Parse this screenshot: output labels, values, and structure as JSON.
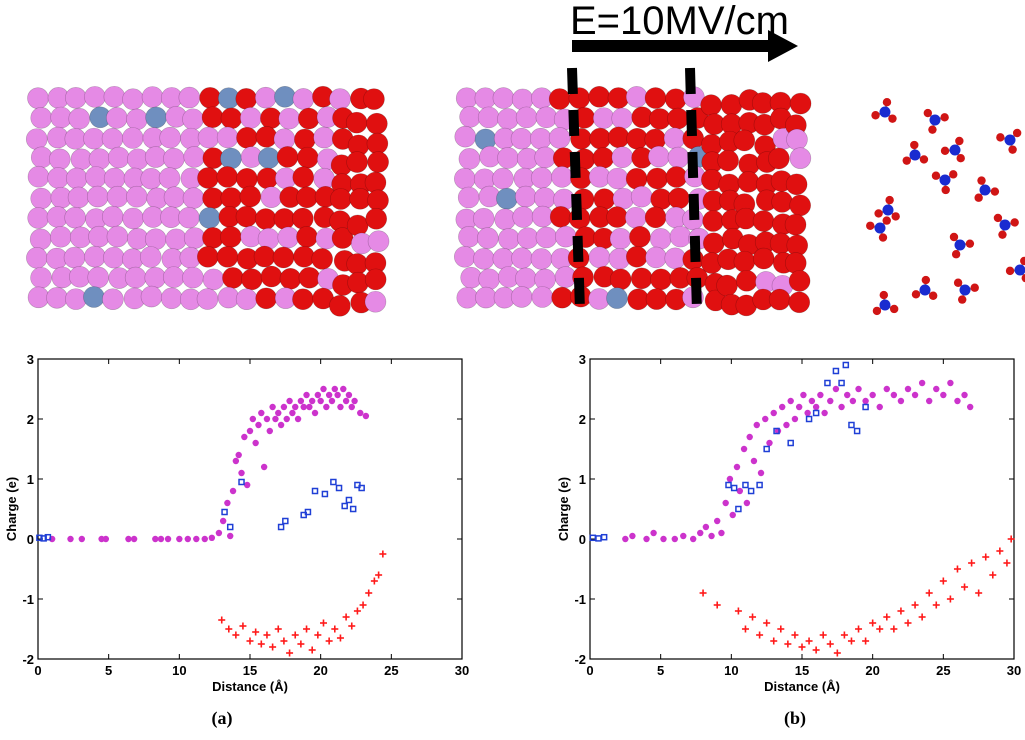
{
  "top": {
    "field_label": "E=10MV/cm"
  },
  "colors": {
    "magenta": "#cc33cc",
    "blue": "#1f3fd6",
    "red": "#ff1a1a",
    "atom_pink": "#e58ae5",
    "atom_red": "#e01010",
    "atom_steel": "#6f8fbf",
    "molecule_blue": "#1a2bd0",
    "molecule_red": "#d01515"
  },
  "panel_labels": [
    "(a)",
    "(b)"
  ],
  "chart_data": [
    {
      "type": "scatter",
      "xlabel": "Distance (Å)",
      "ylabel": "Charge (e)",
      "xlim": [
        0,
        30
      ],
      "ylim": [
        -2,
        3
      ],
      "xticks": [
        "0",
        "5",
        "10",
        "15",
        "20",
        "25",
        "30"
      ],
      "yticks": [
        "-2",
        "-1",
        "0",
        "1",
        "2",
        "3"
      ],
      "series": [
        {
          "color": "magenta",
          "marker": "dot",
          "points": [
            [
              1.0,
              0
            ],
            [
              2.3,
              0
            ],
            [
              3.1,
              0
            ],
            [
              4.5,
              0
            ],
            [
              4.8,
              0
            ],
            [
              6.4,
              0
            ],
            [
              6.8,
              0
            ],
            [
              8.3,
              0
            ],
            [
              8.7,
              0
            ],
            [
              9.2,
              0
            ],
            [
              10.0,
              0
            ],
            [
              10.6,
              0
            ],
            [
              11.2,
              0
            ],
            [
              11.8,
              0
            ],
            [
              12.3,
              0.02
            ],
            [
              12.8,
              0.1
            ],
            [
              13.1,
              0.3
            ],
            [
              13.4,
              0.6
            ],
            [
              13.6,
              0.05
            ],
            [
              13.8,
              0.8
            ],
            [
              14.0,
              1.3
            ],
            [
              14.2,
              1.4
            ],
            [
              14.4,
              1.1
            ],
            [
              14.6,
              1.7
            ],
            [
              14.8,
              0.9
            ],
            [
              15.0,
              1.8
            ],
            [
              15.2,
              2.0
            ],
            [
              15.4,
              1.6
            ],
            [
              15.6,
              1.9
            ],
            [
              15.8,
              2.1
            ],
            [
              16.0,
              1.2
            ],
            [
              16.2,
              2.0
            ],
            [
              16.4,
              1.8
            ],
            [
              16.6,
              2.2
            ],
            [
              16.8,
              2.0
            ],
            [
              17.0,
              2.1
            ],
            [
              17.2,
              1.9
            ],
            [
              17.4,
              2.2
            ],
            [
              17.6,
              2.0
            ],
            [
              17.8,
              2.3
            ],
            [
              18.0,
              2.1
            ],
            [
              18.2,
              2.2
            ],
            [
              18.4,
              2.0
            ],
            [
              18.6,
              2.3
            ],
            [
              18.8,
              2.2
            ],
            [
              19.0,
              2.4
            ],
            [
              19.2,
              2.2
            ],
            [
              19.4,
              2.3
            ],
            [
              19.6,
              2.1
            ],
            [
              19.8,
              2.4
            ],
            [
              20.0,
              2.3
            ],
            [
              20.2,
              2.5
            ],
            [
              20.4,
              2.2
            ],
            [
              20.6,
              2.4
            ],
            [
              20.8,
              2.3
            ],
            [
              21.0,
              2.5
            ],
            [
              21.2,
              2.4
            ],
            [
              21.4,
              2.2
            ],
            [
              21.6,
              2.5
            ],
            [
              21.8,
              2.3
            ],
            [
              22.0,
              2.4
            ],
            [
              22.2,
              2.2
            ],
            [
              22.4,
              2.3
            ],
            [
              22.8,
              2.1
            ],
            [
              23.2,
              2.05
            ]
          ]
        },
        {
          "color": "blue",
          "marker": "square",
          "points": [
            [
              0.1,
              0.02
            ],
            [
              0.4,
              0.01
            ],
            [
              0.7,
              0.03
            ],
            [
              13.2,
              0.45
            ],
            [
              13.6,
              0.2
            ],
            [
              14.4,
              0.95
            ],
            [
              17.2,
              0.2
            ],
            [
              17.5,
              0.3
            ],
            [
              18.8,
              0.4
            ],
            [
              19.1,
              0.45
            ],
            [
              19.6,
              0.8
            ],
            [
              20.3,
              0.75
            ],
            [
              20.9,
              0.95
            ],
            [
              21.3,
              0.85
            ],
            [
              21.7,
              0.55
            ],
            [
              22.0,
              0.65
            ],
            [
              22.3,
              0.5
            ],
            [
              22.6,
              0.9
            ],
            [
              22.9,
              0.85
            ]
          ]
        },
        {
          "color": "red",
          "marker": "plus",
          "points": [
            [
              13.0,
              -1.35
            ],
            [
              13.5,
              -1.5
            ],
            [
              14.0,
              -1.6
            ],
            [
              14.5,
              -1.45
            ],
            [
              15.0,
              -1.7
            ],
            [
              15.4,
              -1.55
            ],
            [
              15.8,
              -1.75
            ],
            [
              16.2,
              -1.6
            ],
            [
              16.6,
              -1.8
            ],
            [
              17.0,
              -1.5
            ],
            [
              17.4,
              -1.7
            ],
            [
              17.8,
              -1.9
            ],
            [
              18.2,
              -1.6
            ],
            [
              18.6,
              -1.75
            ],
            [
              19.0,
              -1.5
            ],
            [
              19.4,
              -1.85
            ],
            [
              19.8,
              -1.6
            ],
            [
              20.2,
              -1.4
            ],
            [
              20.6,
              -1.7
            ],
            [
              21.0,
              -1.5
            ],
            [
              21.4,
              -1.65
            ],
            [
              21.8,
              -1.3
            ],
            [
              22.2,
              -1.45
            ],
            [
              22.6,
              -1.2
            ],
            [
              23.0,
              -1.1
            ],
            [
              23.4,
              -0.9
            ],
            [
              23.8,
              -0.7
            ],
            [
              24.1,
              -0.6
            ],
            [
              24.4,
              -0.25
            ]
          ]
        }
      ]
    },
    {
      "type": "scatter",
      "xlabel": "Distance (Å)",
      "ylabel": "Charge (e)",
      "xlim": [
        0,
        30
      ],
      "ylim": [
        -2,
        3
      ],
      "xticks": [
        "0",
        "5",
        "10",
        "15",
        "20",
        "25",
        "30"
      ],
      "yticks": [
        "-2",
        "-1",
        "0",
        "1",
        "2",
        "3"
      ],
      "series": [
        {
          "color": "magenta",
          "marker": "dot",
          "points": [
            [
              2.5,
              0
            ],
            [
              3.0,
              0.05
            ],
            [
              4.0,
              0
            ],
            [
              4.5,
              0.1
            ],
            [
              5.2,
              0
            ],
            [
              6.0,
              0
            ],
            [
              6.6,
              0.05
            ],
            [
              7.3,
              0
            ],
            [
              7.8,
              0.1
            ],
            [
              8.2,
              0.2
            ],
            [
              8.6,
              0.05
            ],
            [
              9.0,
              0.3
            ],
            [
              9.3,
              0.1
            ],
            [
              9.6,
              0.6
            ],
            [
              9.9,
              1.0
            ],
            [
              10.1,
              0.4
            ],
            [
              10.4,
              1.2
            ],
            [
              10.6,
              0.8
            ],
            [
              10.9,
              1.5
            ],
            [
              11.1,
              0.6
            ],
            [
              11.3,
              1.7
            ],
            [
              11.6,
              1.3
            ],
            [
              11.8,
              1.9
            ],
            [
              12.1,
              1.1
            ],
            [
              12.4,
              2.0
            ],
            [
              12.7,
              1.6
            ],
            [
              13.0,
              2.1
            ],
            [
              13.3,
              1.8
            ],
            [
              13.6,
              2.2
            ],
            [
              13.9,
              1.9
            ],
            [
              14.2,
              2.3
            ],
            [
              14.5,
              2.0
            ],
            [
              14.8,
              2.2
            ],
            [
              15.1,
              2.4
            ],
            [
              15.4,
              2.1
            ],
            [
              15.7,
              2.3
            ],
            [
              16.0,
              2.2
            ],
            [
              16.3,
              2.4
            ],
            [
              16.6,
              2.1
            ],
            [
              17.0,
              2.3
            ],
            [
              17.4,
              2.5
            ],
            [
              17.8,
              2.2
            ],
            [
              18.2,
              2.4
            ],
            [
              18.6,
              2.3
            ],
            [
              19.0,
              2.5
            ],
            [
              19.5,
              2.3
            ],
            [
              20.0,
              2.4
            ],
            [
              20.5,
              2.2
            ],
            [
              21.0,
              2.5
            ],
            [
              21.5,
              2.4
            ],
            [
              22.0,
              2.3
            ],
            [
              22.5,
              2.5
            ],
            [
              23.0,
              2.4
            ],
            [
              23.5,
              2.6
            ],
            [
              24.0,
              2.3
            ],
            [
              24.5,
              2.5
            ],
            [
              25.0,
              2.4
            ],
            [
              25.5,
              2.6
            ],
            [
              26.0,
              2.3
            ],
            [
              26.5,
              2.4
            ],
            [
              26.9,
              2.2
            ]
          ]
        },
        {
          "color": "blue",
          "marker": "square",
          "points": [
            [
              0.2,
              0.02
            ],
            [
              0.6,
              0.01
            ],
            [
              1.0,
              0.03
            ],
            [
              9.8,
              0.9
            ],
            [
              10.2,
              0.85
            ],
            [
              10.5,
              0.5
            ],
            [
              11.0,
              0.9
            ],
            [
              11.4,
              0.8
            ],
            [
              12.0,
              0.9
            ],
            [
              12.5,
              1.5
            ],
            [
              13.2,
              1.8
            ],
            [
              14.2,
              1.6
            ],
            [
              15.5,
              2.0
            ],
            [
              16.0,
              2.1
            ],
            [
              16.8,
              2.6
            ],
            [
              17.4,
              2.8
            ],
            [
              17.8,
              2.6
            ],
            [
              18.1,
              2.9
            ],
            [
              18.5,
              1.9
            ],
            [
              18.9,
              1.8
            ],
            [
              19.5,
              2.2
            ]
          ]
        },
        {
          "color": "red",
          "marker": "plus",
          "points": [
            [
              8.0,
              -0.9
            ],
            [
              9.0,
              -1.1
            ],
            [
              10.5,
              -1.2
            ],
            [
              11.0,
              -1.5
            ],
            [
              11.5,
              -1.3
            ],
            [
              12.0,
              -1.6
            ],
            [
              12.5,
              -1.4
            ],
            [
              13.0,
              -1.7
            ],
            [
              13.5,
              -1.5
            ],
            [
              14.0,
              -1.75
            ],
            [
              14.5,
              -1.6
            ],
            [
              15.0,
              -1.8
            ],
            [
              15.5,
              -1.7
            ],
            [
              16.0,
              -1.85
            ],
            [
              16.5,
              -1.6
            ],
            [
              17.0,
              -1.75
            ],
            [
              17.5,
              -1.9
            ],
            [
              18.0,
              -1.6
            ],
            [
              18.5,
              -1.7
            ],
            [
              19.0,
              -1.5
            ],
            [
              19.5,
              -1.7
            ],
            [
              20.0,
              -1.4
            ],
            [
              20.5,
              -1.5
            ],
            [
              21.0,
              -1.3
            ],
            [
              21.5,
              -1.5
            ],
            [
              22.0,
              -1.2
            ],
            [
              22.5,
              -1.4
            ],
            [
              23.0,
              -1.1
            ],
            [
              23.5,
              -1.3
            ],
            [
              24.0,
              -0.9
            ],
            [
              24.5,
              -1.1
            ],
            [
              25.0,
              -0.7
            ],
            [
              25.5,
              -1.0
            ],
            [
              26.0,
              -0.5
            ],
            [
              26.5,
              -0.8
            ],
            [
              27.0,
              -0.4
            ],
            [
              27.5,
              -0.9
            ],
            [
              28.0,
              -0.3
            ],
            [
              28.5,
              -0.6
            ],
            [
              29.0,
              -0.2
            ],
            [
              29.5,
              -0.4
            ],
            [
              29.8,
              0.0
            ]
          ]
        }
      ]
    }
  ]
}
